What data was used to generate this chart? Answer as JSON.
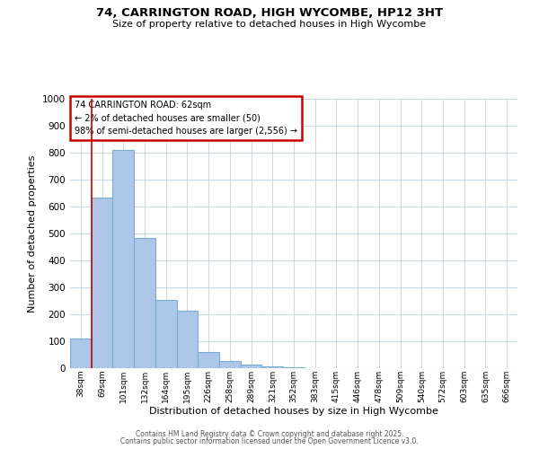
{
  "title": "74, CARRINGTON ROAD, HIGH WYCOMBE, HP12 3HT",
  "subtitle": "Size of property relative to detached houses in High Wycombe",
  "xlabel": "Distribution of detached houses by size in High Wycombe",
  "ylabel": "Number of detached properties",
  "bar_labels": [
    "38sqm",
    "69sqm",
    "101sqm",
    "132sqm",
    "164sqm",
    "195sqm",
    "226sqm",
    "258sqm",
    "289sqm",
    "321sqm",
    "352sqm",
    "383sqm",
    "415sqm",
    "446sqm",
    "478sqm",
    "509sqm",
    "540sqm",
    "572sqm",
    "603sqm",
    "635sqm",
    "666sqm"
  ],
  "bar_values": [
    110,
    635,
    810,
    485,
    255,
    215,
    60,
    28,
    15,
    8,
    5,
    0,
    0,
    0,
    0,
    0,
    0,
    0,
    0,
    0,
    0
  ],
  "bar_color": "#aec6e8",
  "bar_edge_color": "#7aadd4",
  "marker_color": "#cc0000",
  "ylim": [
    0,
    1000
  ],
  "yticks": [
    0,
    100,
    200,
    300,
    400,
    500,
    600,
    700,
    800,
    900,
    1000
  ],
  "annotation_title": "74 CARRINGTON ROAD: 62sqm",
  "annotation_line1": "← 2% of detached houses are smaller (50)",
  "annotation_line2": "98% of semi-detached houses are larger (2,556) →",
  "footer1": "Contains HM Land Registry data © Crown copyright and database right 2025.",
  "footer2": "Contains public sector information licensed under the Open Government Licence v3.0.",
  "bg_color": "#ffffff",
  "grid_color": "#c8d8e8",
  "annotation_box_color": "#cc0000"
}
